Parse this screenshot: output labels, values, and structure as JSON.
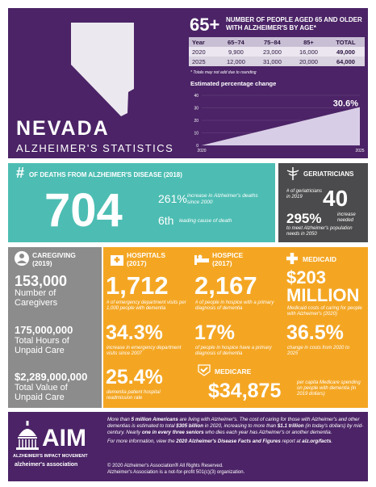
{
  "header": {
    "state": "NEVADA",
    "subtitle": "ALZHEIMER'S STATISTICS",
    "age_badge": "65+",
    "age_title": "NUMBER OF PEOPLE AGED 65 AND OLDER WITH ALZHEIMER'S BY AGE*",
    "table": {
      "columns": [
        "Year",
        "65–74",
        "75–84",
        "85+",
        "TOTAL"
      ],
      "rows": [
        [
          "2020",
          "9,900",
          "23,000",
          "16,000",
          "49,000"
        ],
        [
          "2025",
          "12,000",
          "31,000",
          "20,000",
          "64,000"
        ]
      ]
    },
    "note": "* Totals may not add due to rounding"
  },
  "chart_data": {
    "type": "area",
    "title": "Estimated percentage change",
    "x": [
      "2020",
      "2025"
    ],
    "values": [
      0,
      30.6
    ],
    "end_label": "30.6%",
    "ylim": [
      0,
      40
    ],
    "yticks": [
      0,
      10,
      20,
      30,
      40
    ],
    "color": "#d8cde6"
  },
  "deaths": {
    "symbol": "#",
    "title": "OF DEATHS FROM ALZHEIMER'S DISEASE (2018)",
    "value": "704",
    "increase": "261%",
    "increase_text": "increase in Alzheimer's deaths since 2000",
    "rank": "6th",
    "rank_text": "leading cause of death"
  },
  "geriatricians": {
    "title": "GERIATRICIANS",
    "count_text": "# of geriatricians in 2019",
    "count": "40",
    "increase": "295%",
    "increase_text": "increase needed",
    "needs_text": "to meet Alzheimer's population needs in 2050"
  },
  "caregiving": {
    "title": "CAREGIVING",
    "year": "(2019)",
    "stats": [
      {
        "value": "153,000",
        "label": "Number of Caregivers"
      },
      {
        "value": "175,000,000",
        "label": "Total Hours of Unpaid Care"
      },
      {
        "value": "$2,289,000,000",
        "label": "Total Value of Unpaid Care"
      }
    ]
  },
  "hospitals": {
    "title": "HOSPITALS",
    "year": "(2017)",
    "stats": [
      {
        "value": "1,712",
        "label": "# of emergency department visits per 1,000 people with dementia"
      },
      {
        "value": "34.3%",
        "label": "increase in emergency department visits since 2007"
      },
      {
        "value": "25.4%",
        "label": "dementia patient hospital readmission rate"
      }
    ]
  },
  "hospice": {
    "title": "HOSPICE",
    "year": "(2017)",
    "stats": [
      {
        "value": "2,167",
        "label": "# of people in hospice with a primary diagnosis of dementia"
      },
      {
        "value": "17%",
        "label": "of people in hospice have a primary diagnosis of dementia"
      }
    ]
  },
  "medicaid": {
    "title": "MEDICAID",
    "value": "$203",
    "unit": "MILLION",
    "value_text": "Medicaid costs of caring for people with Alzheimer's (2020)",
    "change": "36.5%",
    "change_text": "change in costs from 2020 to 2025"
  },
  "medicare": {
    "title": "MEDICARE",
    "value": "$34,875",
    "text": "per capita Medicare spending on people with dementia (in 2019 dollars)"
  },
  "footer": {
    "logo": "AIM",
    "logo_text": "ALZHEIMER'S IMPACT MOVEMENT",
    "association": "alzheimer's association",
    "paragraphs": [
      [
        "More than ",
        "5 million Americans",
        " are living with Alzheimer's. The cost of caring for those with Alzheimer's and other dementias is estimated to total ",
        "$305 billion",
        " in 2020, increasing to more than ",
        "$1.1 trillion",
        " (in today's dollars) by mid-century. Nearly ",
        "one in every three seniors",
        " who dies each year has Alzheimer's or another dementia."
      ],
      [
        "For more information, view the ",
        "2020 Alzheimer's Disease Facts and Figures",
        " report at ",
        "alz.org/facts",
        "."
      ]
    ],
    "copyright": "© 2020 Alzheimer's Association® All Rights Reserved.",
    "nonprofit": "Alzheimer's Association is a not-for-profit 501(c)(3) organization."
  }
}
